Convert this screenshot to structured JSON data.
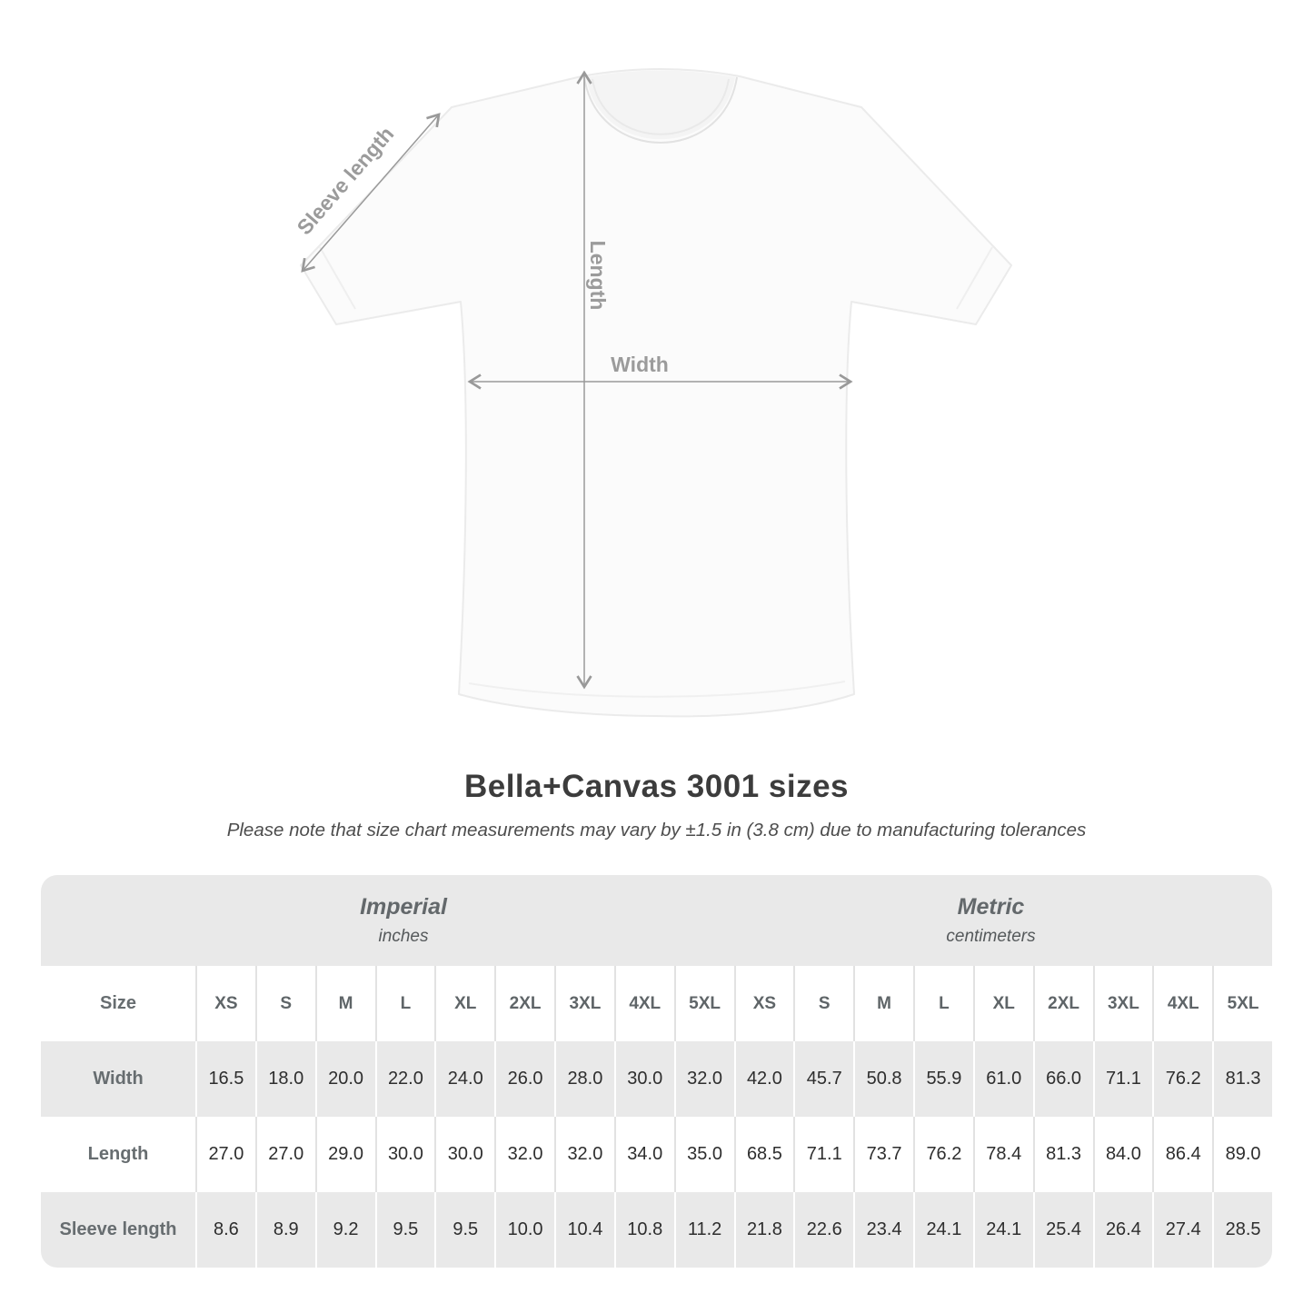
{
  "diagram": {
    "labels": {
      "sleeve_length": "Sleeve length",
      "length": "Length",
      "width": "Width"
    }
  },
  "heading": {
    "title": "Bella+Canvas 3001 sizes",
    "subtitle": "Please note that size chart measurements may vary by ±1.5 in (3.8 cm) due to manufacturing tolerances"
  },
  "table": {
    "unit_groups": [
      {
        "label": "Imperial",
        "sublabel": "inches"
      },
      {
        "label": "Metric",
        "sublabel": "centimeters"
      }
    ],
    "size_header_label": "Size",
    "sizes": [
      "XS",
      "S",
      "M",
      "L",
      "XL",
      "2XL",
      "3XL",
      "4XL",
      "5XL"
    ],
    "rows": [
      {
        "label": "Width",
        "imperial": [
          "16.5",
          "18.0",
          "20.0",
          "22.0",
          "24.0",
          "26.0",
          "28.0",
          "30.0",
          "32.0"
        ],
        "metric": [
          "42.0",
          "45.7",
          "50.8",
          "55.9",
          "61.0",
          "66.0",
          "71.1",
          "76.2",
          "81.3"
        ]
      },
      {
        "label": "Length",
        "imperial": [
          "27.0",
          "27.0",
          "29.0",
          "30.0",
          "30.0",
          "32.0",
          "32.0",
          "34.0",
          "35.0"
        ],
        "metric": [
          "68.5",
          "71.1",
          "73.7",
          "76.2",
          "78.4",
          "81.3",
          "84.0",
          "86.4",
          "89.0"
        ]
      },
      {
        "label": "Sleeve length",
        "imperial": [
          "8.6",
          "8.9",
          "9.2",
          "9.5",
          "9.5",
          "10.0",
          "10.4",
          "10.8",
          "11.2"
        ],
        "metric": [
          "21.8",
          "22.6",
          "23.4",
          "24.1",
          "24.1",
          "25.4",
          "26.4",
          "27.4",
          "28.5"
        ]
      }
    ]
  },
  "chart_data": {
    "type": "table",
    "title": "Bella+Canvas 3001 sizes",
    "note": "Measurements may vary by ±1.5 in (3.8 cm)",
    "unit_groups": [
      "Imperial (inches)",
      "Metric (centimeters)"
    ],
    "sizes": [
      "XS",
      "S",
      "M",
      "L",
      "XL",
      "2XL",
      "3XL",
      "4XL",
      "5XL"
    ],
    "rows": [
      {
        "measurement": "Width",
        "imperial": [
          16.5,
          18.0,
          20.0,
          22.0,
          24.0,
          26.0,
          28.0,
          30.0,
          32.0
        ],
        "metric": [
          42.0,
          45.7,
          50.8,
          55.9,
          61.0,
          66.0,
          71.1,
          76.2,
          81.3
        ]
      },
      {
        "measurement": "Length",
        "imperial": [
          27.0,
          27.0,
          29.0,
          30.0,
          30.0,
          32.0,
          32.0,
          34.0,
          35.0
        ],
        "metric": [
          68.5,
          71.1,
          73.7,
          76.2,
          78.4,
          81.3,
          84.0,
          86.4,
          89.0
        ]
      },
      {
        "measurement": "Sleeve length",
        "imperial": [
          8.6,
          8.9,
          9.2,
          9.5,
          9.5,
          10.0,
          10.4,
          10.8,
          11.2
        ],
        "metric": [
          21.8,
          22.6,
          23.4,
          24.1,
          24.1,
          25.4,
          26.4,
          27.4,
          28.5
        ]
      }
    ]
  },
  "colors": {
    "band_gray": "#e9e9e9",
    "arrow_gray": "#999999",
    "diagram_label_gray": "#9b9b9b",
    "title_text": "#3c3c3c",
    "value_text": "#2e2e2e"
  }
}
